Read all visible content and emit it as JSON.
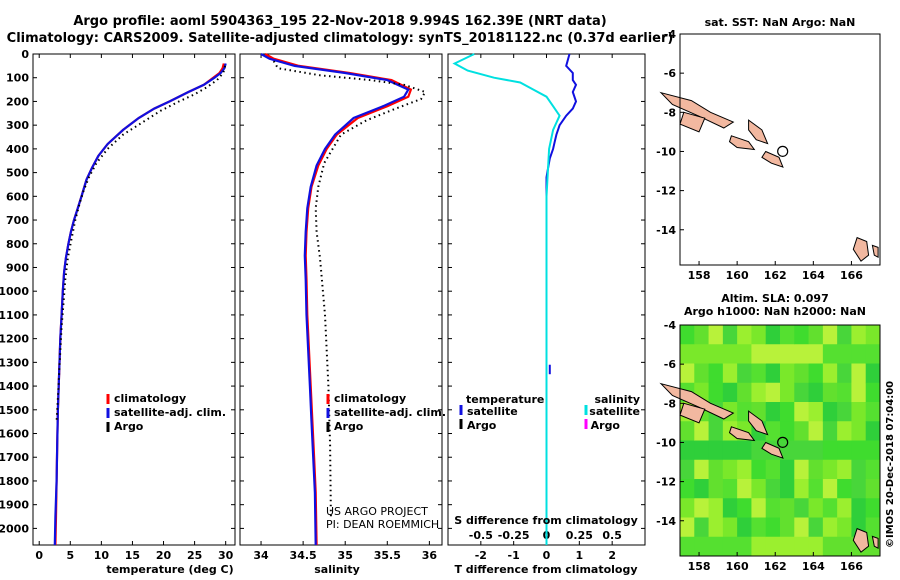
{
  "header": {
    "title_line1": "Argo profile: aoml 5904363_195 22-Nov-2018 9.994S 162.39E (NRT data)",
    "title_line2": "Climatology: CARS2009. Satellite-adjusted climatology: synTS_20181122.nc (0.37d earlier)"
  },
  "credits": {
    "line1": "US ARGO PROJECT",
    "line2": "PI: DEAN ROEMMICH"
  },
  "stamp": "©IMOS 20-Dec-2018 07:04:00",
  "colors": {
    "climatology": "#ff0000",
    "satellite": "#1010e0",
    "argo": "#000000",
    "sat_salinity": "#00e0e0",
    "argo_salinity": "#ff00ff"
  },
  "chart_data": [
    {
      "type": "line",
      "id": "temperature",
      "xlabel": "temperature (deg C)",
      "xlim": [
        -1,
        31.5
      ],
      "xticks": [
        0,
        5,
        10,
        15,
        20,
        25,
        30
      ],
      "ylim": [
        2070,
        0
      ],
      "yticks": [
        0,
        100,
        200,
        300,
        400,
        500,
        600,
        700,
        800,
        900,
        1000,
        1100,
        1200,
        1300,
        1400,
        1500,
        1600,
        1700,
        1800,
        1900,
        2000
      ],
      "legend": [
        "climatology",
        "satellite-adj. clim.",
        "Argo"
      ],
      "series": [
        {
          "name": "climatology",
          "style": "solid",
          "color": "#ff0000",
          "x": [
            29.7,
            29.5,
            29.0,
            28.0,
            26.5,
            24.0,
            21.0,
            18.5,
            16.0,
            13.5,
            11.0,
            9.5,
            8.5,
            7.6,
            6.8,
            6.2,
            5.6,
            5.1,
            4.7,
            4.3,
            4.0,
            3.8,
            3.6,
            3.4,
            3.2,
            3.0,
            2.9,
            2.8,
            2.7,
            2.6
          ],
          "y": [
            40,
            60,
            80,
            100,
            130,
            160,
            200,
            230,
            270,
            320,
            380,
            430,
            480,
            530,
            600,
            650,
            700,
            750,
            800,
            860,
            920,
            1000,
            1100,
            1200,
            1350,
            1500,
            1650,
            1800,
            1950,
            2070
          ]
        },
        {
          "name": "satellite-adj. clim.",
          "style": "solid",
          "color": "#1010e0",
          "x": [
            30.0,
            29.8,
            29.2,
            28.2,
            26.5,
            24.0,
            21.0,
            18.5,
            16.0,
            13.5,
            11.0,
            9.5,
            8.5,
            7.6,
            6.8,
            6.2,
            5.6,
            5.1,
            4.7,
            4.3,
            4.0,
            3.8,
            3.6,
            3.4,
            3.2,
            3.0,
            2.9,
            2.8,
            2.6,
            2.5
          ],
          "y": [
            40,
            60,
            80,
            100,
            130,
            160,
            200,
            230,
            270,
            320,
            380,
            430,
            480,
            530,
            600,
            650,
            700,
            750,
            800,
            860,
            920,
            1000,
            1100,
            1200,
            1350,
            1500,
            1650,
            1800,
            1950,
            2070
          ]
        },
        {
          "name": "Argo",
          "style": "dotted",
          "color": "#000000",
          "x": [
            29.9,
            29.6,
            28.6,
            27.0,
            25.0,
            22.5,
            19.5,
            16.5,
            13.5,
            11.0,
            9.2,
            8.0,
            7.1,
            6.4,
            5.8,
            5.2,
            4.6,
            4.2,
            3.9,
            3.6,
            3.3,
            3.0,
            2.8
          ],
          "y": [
            50,
            80,
            110,
            140,
            170,
            200,
            240,
            290,
            340,
            400,
            460,
            520,
            580,
            640,
            700,
            780,
            860,
            950,
            1050,
            1150,
            1300,
            1450,
            1550
          ]
        }
      ]
    },
    {
      "type": "line",
      "id": "salinity",
      "xlabel": "salinity",
      "xlim": [
        33.75,
        36.15
      ],
      "xticks": [
        34,
        34.5,
        35,
        35.5,
        36
      ],
      "ylim": [
        2070,
        0
      ],
      "legend": [
        "climatology",
        "satellite-adj. clim.",
        "Argo"
      ],
      "series": [
        {
          "name": "climatology",
          "style": "solid",
          "color": "#ff0000",
          "x": [
            34.05,
            34.15,
            34.45,
            35.05,
            35.55,
            35.78,
            35.75,
            35.5,
            35.15,
            34.9,
            34.78,
            34.68,
            34.6,
            34.56,
            34.54,
            34.53,
            34.54,
            34.55,
            34.57,
            34.59,
            34.61,
            34.63,
            34.65,
            34.66
          ],
          "y": [
            0,
            20,
            50,
            80,
            110,
            150,
            180,
            220,
            270,
            340,
            400,
            470,
            560,
            650,
            750,
            850,
            950,
            1100,
            1250,
            1400,
            1550,
            1700,
            1850,
            2070
          ]
        },
        {
          "name": "satellite-adj. clim.",
          "style": "solid",
          "color": "#1010e0",
          "x": [
            34.0,
            34.1,
            34.4,
            35.0,
            35.5,
            35.75,
            35.7,
            35.45,
            35.1,
            34.88,
            34.76,
            34.66,
            34.59,
            34.55,
            34.53,
            34.52,
            34.53,
            34.54,
            34.56,
            34.58,
            34.6,
            34.62,
            34.64,
            34.65
          ],
          "y": [
            0,
            20,
            50,
            80,
            110,
            150,
            180,
            220,
            270,
            340,
            400,
            470,
            560,
            650,
            750,
            850,
            950,
            1100,
            1250,
            1400,
            1550,
            1700,
            1850,
            2070
          ]
        },
        {
          "name": "Argo",
          "style": "dotted",
          "color": "#000000",
          "x": [
            34.15,
            34.2,
            34.7,
            35.3,
            35.7,
            35.95,
            35.9,
            35.6,
            35.25,
            34.95,
            34.85,
            34.75,
            34.68,
            34.65,
            34.66,
            34.7,
            34.73,
            34.76,
            34.78,
            34.8,
            34.82,
            34.83
          ],
          "y": [
            30,
            60,
            90,
            110,
            130,
            160,
            190,
            230,
            280,
            340,
            400,
            460,
            560,
            650,
            750,
            860,
            980,
            1100,
            1250,
            1400,
            1650,
            1950
          ]
        }
      ]
    },
    {
      "type": "line",
      "id": "difference",
      "xlabel": "T difference from climatology",
      "xlabel2": "S difference from climatology",
      "xlim": [
        -3,
        3
      ],
      "xticks": [
        -2,
        -1,
        0,
        1,
        2
      ],
      "xticklabels": [
        "-2",
        "-1",
        "0",
        "1",
        "2"
      ],
      "xlim2": [
        -0.75,
        0.75
      ],
      "xticks2": [
        -0.5,
        -0.25,
        0,
        0.25,
        0.5
      ],
      "xticklabels2": [
        "-0.5",
        "-0.25",
        "0",
        "0.25",
        "0.5"
      ],
      "ylim": [
        2070,
        0
      ],
      "legend_left": [
        "temperature",
        "satellite",
        "Argo"
      ],
      "legend_right": [
        "salinity",
        "satellite",
        "Argo"
      ],
      "series": [
        {
          "name": "T satellite",
          "style": "solid",
          "color": "#1010e0",
          "x": [
            0.7,
            0.6,
            0.8,
            0.8,
            0.9,
            0.8,
            0.9,
            0.8,
            0.6,
            0.4,
            0.3,
            0.25,
            0.2,
            0.1,
            0.05,
            0,
            0,
            0,
            0,
            0,
            0,
            0,
            0,
            0
          ],
          "y": [
            0,
            50,
            80,
            110,
            130,
            160,
            200,
            230,
            260,
            300,
            340,
            370,
            400,
            440,
            480,
            520,
            600,
            700,
            900,
            1100,
            1400,
            1700,
            1950,
            2070
          ]
        },
        {
          "name": "S satellite",
          "style": "solid",
          "color": "#00e0e0",
          "x": [
            -0.55,
            -0.7,
            -0.6,
            -0.4,
            -0.2,
            -0.1,
            0,
            0.05,
            0.1,
            0.05,
            0.02,
            0.01,
            0,
            0,
            0,
            0,
            0,
            0
          ],
          "y": [
            0,
            40,
            70,
            100,
            120,
            150,
            180,
            220,
            260,
            320,
            400,
            500,
            600,
            800,
            1100,
            1400,
            1700,
            2070
          ]
        }
      ]
    }
  ],
  "maps": {
    "sst": {
      "title": "sat. SST: NaN Argo: NaN",
      "xticks": [
        158,
        160,
        162,
        164,
        166
      ],
      "yticks": [
        -4,
        -6,
        -8,
        -10,
        -12,
        -14
      ],
      "xlim": [
        157,
        167.5
      ],
      "ylim": [
        -15.8,
        -4
      ]
    },
    "sla": {
      "title_line1": "Altim. SLA: 0.097",
      "title_line2": "Argo h1000: NaN h2000: NaN",
      "xticks": [
        158,
        160,
        162,
        164,
        166
      ],
      "yticks": [
        -4,
        -6,
        -8,
        -10,
        -12,
        -14
      ],
      "xlim": [
        157,
        167.5
      ],
      "ylim": [
        -15.8,
        -4
      ]
    },
    "float_position": {
      "lon": 162.39,
      "lat": -9.994
    }
  }
}
